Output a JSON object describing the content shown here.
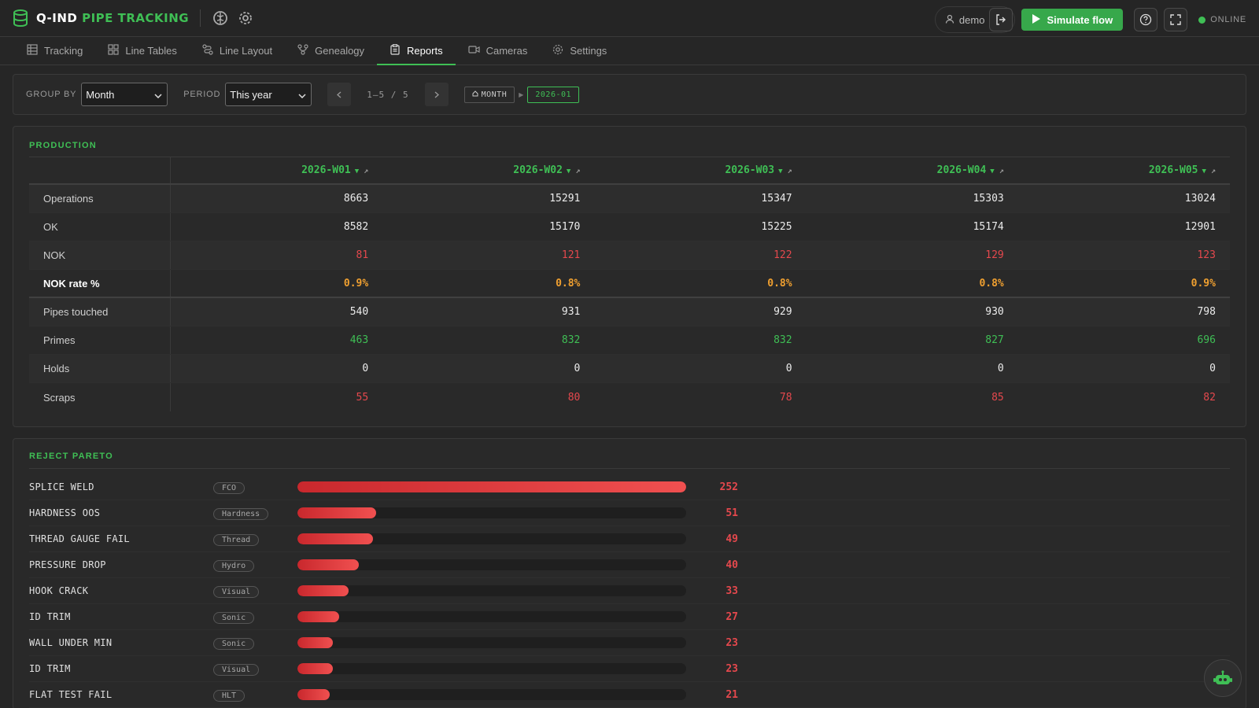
{
  "header": {
    "brand_primary": "Q-IND",
    "brand_secondary": "PIPE TRACKING",
    "user_name": "demo",
    "simulate_label": "Simulate flow",
    "status_label": "ONLINE",
    "accent_color": "#3fbf55"
  },
  "tabs": [
    {
      "label": "Tracking",
      "icon": "table-icon"
    },
    {
      "label": "Line Tables",
      "icon": "grid-icon"
    },
    {
      "label": "Line Layout",
      "icon": "route-icon"
    },
    {
      "label": "Genealogy",
      "icon": "tree-icon"
    },
    {
      "label": "Reports",
      "icon": "clipboard-icon",
      "active": true
    },
    {
      "label": "Cameras",
      "icon": "camera-icon"
    },
    {
      "label": "Settings",
      "icon": "gear-icon"
    }
  ],
  "filters": {
    "group_by_label": "GROUP BY",
    "group_by_value": "Month",
    "period_label": "PERIOD",
    "period_value": "This year",
    "page_text": "1–5 / 5",
    "crumb_root": "MONTH",
    "crumb_current": "2026-01"
  },
  "production": {
    "title": "PRODUCTION",
    "columns": [
      "2026-W01",
      "2026-W02",
      "2026-W03",
      "2026-W04",
      "2026-W05"
    ],
    "rows": [
      {
        "label": "Operations",
        "values": [
          "8663",
          "15291",
          "15347",
          "15303",
          "13024"
        ]
      },
      {
        "label": "OK",
        "values": [
          "8582",
          "15170",
          "15225",
          "15174",
          "12901"
        ]
      },
      {
        "label": "NOK",
        "values": [
          "81",
          "121",
          "122",
          "129",
          "123"
        ]
      },
      {
        "label": "NOK rate %",
        "values": [
          "0.9%",
          "0.8%",
          "0.8%",
          "0.8%",
          "0.9%"
        ]
      },
      {
        "label": "Pipes touched",
        "values": [
          "540",
          "931",
          "929",
          "930",
          "798"
        ]
      },
      {
        "label": "Primes",
        "values": [
          "463",
          "832",
          "832",
          "827",
          "696"
        ]
      },
      {
        "label": "Holds",
        "values": [
          "0",
          "0",
          "0",
          "0",
          "0"
        ]
      },
      {
        "label": "Scraps",
        "values": [
          "55",
          "80",
          "78",
          "85",
          "82"
        ]
      }
    ]
  },
  "pareto": {
    "title": "REJECT PARETO",
    "max": 252,
    "items": [
      {
        "name": "SPLICE WELD",
        "tag": "FCO",
        "count": 252
      },
      {
        "name": "HARDNESS OOS",
        "tag": "Hardness",
        "count": 51
      },
      {
        "name": "THREAD GAUGE FAIL",
        "tag": "Thread",
        "count": 49
      },
      {
        "name": "PRESSURE DROP",
        "tag": "Hydro",
        "count": 40
      },
      {
        "name": "HOOK CRACK",
        "tag": "Visual",
        "count": 33
      },
      {
        "name": "ID TRIM",
        "tag": "Sonic",
        "count": 27
      },
      {
        "name": "WALL UNDER MIN",
        "tag": "Sonic",
        "count": 23
      },
      {
        "name": "ID TRIM",
        "tag": "Visual",
        "count": 23
      },
      {
        "name": "FLAT TEST FAIL",
        "tag": "HLT",
        "count": 21
      }
    ]
  }
}
